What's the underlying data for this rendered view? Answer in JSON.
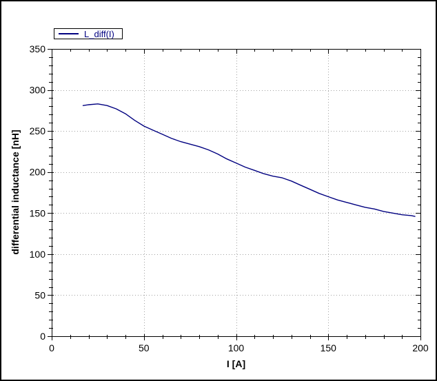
{
  "window": {
    "background": "#ffffff",
    "border_color": "#000000"
  },
  "legend": {
    "label": "L_diff(I)",
    "line_color": "#000080",
    "text_color": "#000080"
  },
  "axes": {
    "x_title": "I [A]",
    "y_title": "differential inductance [nH]"
  },
  "colors": {
    "curve": "#000080",
    "grid_dots": "#a0a0a0",
    "axis": "#000000",
    "tick_text": "#000000"
  },
  "chart_data": {
    "type": "line",
    "title": "",
    "xlabel": "I [A]",
    "ylabel": "differential inductance [nH]",
    "xlim": [
      0,
      200
    ],
    "ylim": [
      0,
      350
    ],
    "xticks": [
      0,
      50,
      100,
      150,
      200
    ],
    "yticks": [
      0,
      50,
      100,
      150,
      200,
      250,
      300,
      350
    ],
    "x_minor_step": 10,
    "y_minor_step": 10,
    "grid": "dotted-major",
    "legend_position": "top-left-outside",
    "series": [
      {
        "name": "L_diff(I)",
        "color": "#000080",
        "points": [
          [
            17,
            281
          ],
          [
            20,
            282
          ],
          [
            25,
            283
          ],
          [
            30,
            281
          ],
          [
            35,
            277
          ],
          [
            40,
            271
          ],
          [
            45,
            263
          ],
          [
            50,
            256
          ],
          [
            55,
            251
          ],
          [
            60,
            246
          ],
          [
            65,
            241
          ],
          [
            70,
            237
          ],
          [
            75,
            234
          ],
          [
            80,
            231
          ],
          [
            85,
            227
          ],
          [
            90,
            222
          ],
          [
            95,
            216
          ],
          [
            100,
            211
          ],
          [
            105,
            206
          ],
          [
            110,
            202
          ],
          [
            115,
            198
          ],
          [
            120,
            195
          ],
          [
            125,
            193
          ],
          [
            130,
            189
          ],
          [
            135,
            184
          ],
          [
            140,
            179
          ],
          [
            145,
            174
          ],
          [
            150,
            170
          ],
          [
            155,
            166
          ],
          [
            160,
            163
          ],
          [
            165,
            160
          ],
          [
            170,
            157
          ],
          [
            175,
            155
          ],
          [
            180,
            152
          ],
          [
            185,
            150
          ],
          [
            190,
            148
          ],
          [
            195,
            147
          ],
          [
            197,
            146
          ]
        ]
      }
    ]
  }
}
